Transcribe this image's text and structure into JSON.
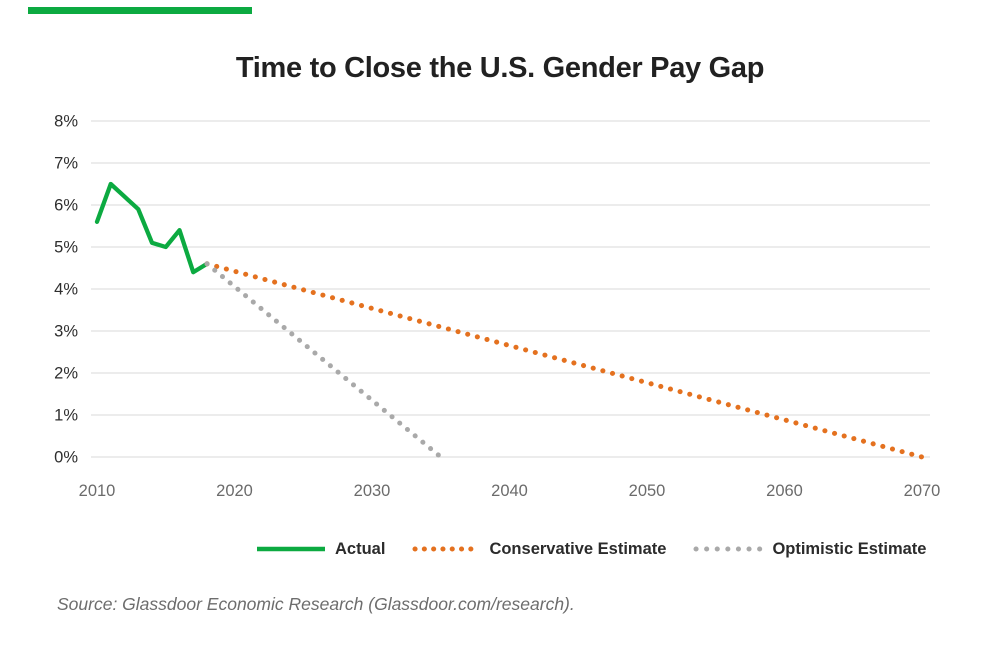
{
  "title": "Time to Close the U.S. Gender Pay Gap",
  "source": "Source: Glassdoor Economic Research (Glassdoor.com/research).",
  "colors": {
    "accent_green": "#0caa41",
    "gridline": "#d9d9d9",
    "y_axis_label": "#2e2e2e",
    "x_axis_label": "#6b6b6b",
    "title_text": "#212121",
    "legend_text": "#2b2b2b",
    "source_text": "#6d6d6d"
  },
  "chart_data": {
    "type": "line",
    "title": "Time to Close the U.S. Gender Pay Gap",
    "xlabel": "",
    "ylabel": "",
    "xlim": [
      2010,
      2070
    ],
    "ylim": [
      0,
      8
    ],
    "x_ticks": [
      "2010",
      "2020",
      "2030",
      "2040",
      "2050",
      "2060",
      "2070"
    ],
    "y_ticks": [
      "8%",
      "7%",
      "6%",
      "5%",
      "4%",
      "3%",
      "2%",
      "1%",
      "0%"
    ],
    "grid": "horizontal-only",
    "legend_position": "bottom",
    "series": [
      {
        "name": "Actual",
        "style": "solid",
        "color": "#0caa41",
        "x": [
          2010,
          2011,
          2012,
          2013,
          2014,
          2015,
          2016,
          2017,
          2018
        ],
        "y": [
          5.6,
          6.5,
          6.2,
          5.9,
          5.1,
          5.0,
          5.4,
          4.4,
          4.6
        ]
      },
      {
        "name": "Conservative Estimate",
        "style": "dotted",
        "color": "#e4711f",
        "x": [
          2018,
          2070
        ],
        "y": [
          4.6,
          0
        ]
      },
      {
        "name": "Optimistic Estimate",
        "style": "dotted",
        "color": "#a9a9a9",
        "x": [
          2018,
          2035
        ],
        "y": [
          4.6,
          0
        ]
      }
    ]
  }
}
